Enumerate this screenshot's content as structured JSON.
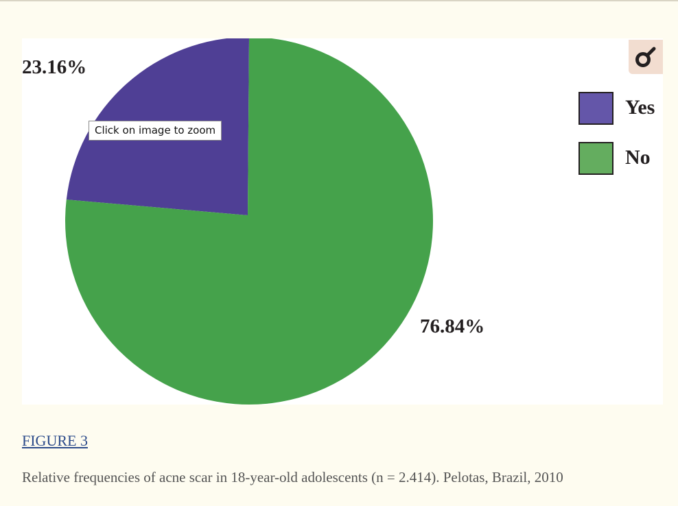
{
  "chart_data": {
    "type": "pie",
    "title": "",
    "slices": [
      {
        "name": "Yes",
        "value": 23.16,
        "label": "23.16%",
        "color": "#4f3f95"
      },
      {
        "name": "No",
        "value": 76.84,
        "label": "76.84%",
        "color": "#45a24b"
      }
    ],
    "legend": {
      "placement": "top-right",
      "entries": [
        {
          "label": "Yes",
          "color": "#6456a9"
        },
        {
          "label": "No",
          "color": "#64ad5f"
        }
      ]
    }
  },
  "tooltip": {
    "text": "Click on image to zoom"
  },
  "zoom_button": {
    "icon": "zoom-magnifier-icon",
    "color": "#231f20"
  },
  "figure": {
    "link_text": "FIGURE 3",
    "caption": "Relative frequencies of acne scar in 18-year-old adolescents (n = 2.414). Pelotas, Brazil, 2010"
  },
  "colors": {
    "page_background": "#fefcf0",
    "panel_background": "#ffffff",
    "link": "#2b4a8a",
    "caption_text": "#545454"
  }
}
